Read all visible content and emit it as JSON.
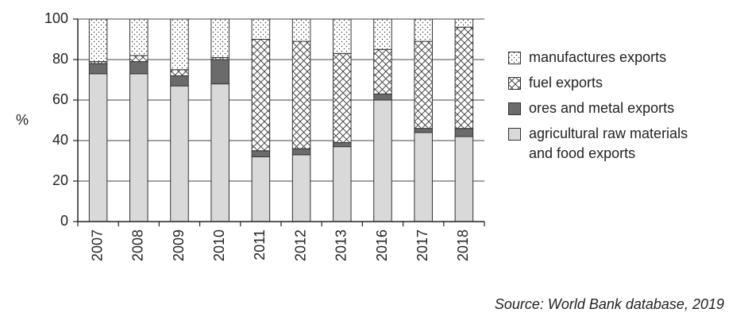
{
  "chart_data": {
    "type": "stacked_bar",
    "categories": [
      "2007",
      "2008",
      "2009",
      "2010",
      "2011",
      "2012",
      "2013",
      "2016",
      "2017",
      "2018"
    ],
    "series": [
      {
        "name": "agricultural raw materials and food exports",
        "color": "#d9d9d9",
        "pattern": "solid",
        "values": [
          73,
          73,
          67,
          68,
          32,
          33,
          37,
          60,
          44,
          42
        ]
      },
      {
        "name": "ores and metal exports",
        "color": "#6b6b6b",
        "pattern": "solid",
        "values": [
          5,
          6,
          5,
          12,
          3,
          3,
          2,
          3,
          2,
          4
        ]
      },
      {
        "name": "fuel exports",
        "color": "#ffffff",
        "pattern": "crosshatch",
        "values": [
          1,
          3,
          3,
          1,
          55,
          53,
          44,
          22,
          43,
          50
        ]
      },
      {
        "name": "manufactures exports",
        "color": "#ffffff",
        "pattern": "dots",
        "values": [
          21,
          18,
          25,
          19,
          10,
          11,
          17,
          15,
          11,
          4
        ]
      }
    ],
    "ylabel": "%",
    "ylim": [
      0,
      100
    ],
    "yticks": [
      0,
      20,
      40,
      60,
      80,
      100
    ],
    "grid": true,
    "legend": "right",
    "source": "Source: World Bank database, 2019"
  }
}
